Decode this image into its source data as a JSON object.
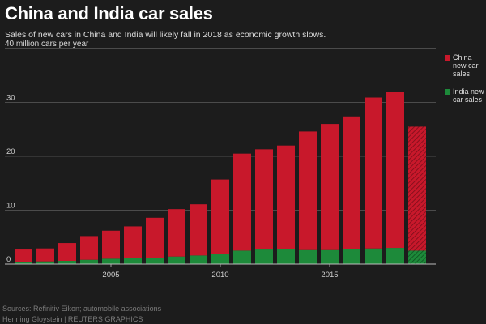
{
  "title": "China and India car sales",
  "subtitle": "Sales of new cars in China and India will likely fall in 2018 as economic growth slows.",
  "unit_label": "40 million cars per year",
  "footer": {
    "sources": "Sources: Refinitiv Eikon; automobile associations",
    "credit": "Henning Gloystein",
    "publisher": "REUTERS GRAPHICS"
  },
  "colors": {
    "china": "#c8182b",
    "india": "#1d8a3a",
    "background": "#1c1c1c"
  },
  "chart_data": {
    "type": "bar",
    "stacked": true,
    "x": [
      2001,
      2002,
      2003,
      2004,
      2005,
      2006,
      2007,
      2008,
      2009,
      2010,
      2011,
      2012,
      2013,
      2014,
      2015,
      2016,
      2017,
      2018
    ],
    "series": [
      {
        "name": "China new car sales",
        "values": [
          2.3,
          2.4,
          3.3,
          4.4,
          5.2,
          5.9,
          7.4,
          8.8,
          9.5,
          13.8,
          18.0,
          18.6,
          19.2,
          22.0,
          23.4,
          24.6,
          28.0,
          28.9
        ]
      },
      {
        "name": "India new car sales",
        "values": [
          0.4,
          0.5,
          0.6,
          0.8,
          1.0,
          1.1,
          1.2,
          1.4,
          1.6,
          1.9,
          2.5,
          2.7,
          2.8,
          2.6,
          2.6,
          2.8,
          2.9,
          3.0
        ]
      }
    ],
    "forecast": {
      "x": 2019,
      "china": 23.0,
      "india": 2.5
    },
    "x_ticks": [
      2005,
      2010,
      2015
    ],
    "y_ticks": [
      0,
      10,
      20,
      30
    ],
    "ylim": [
      0,
      40
    ],
    "grid": "horizontal",
    "legend_position": "right"
  }
}
